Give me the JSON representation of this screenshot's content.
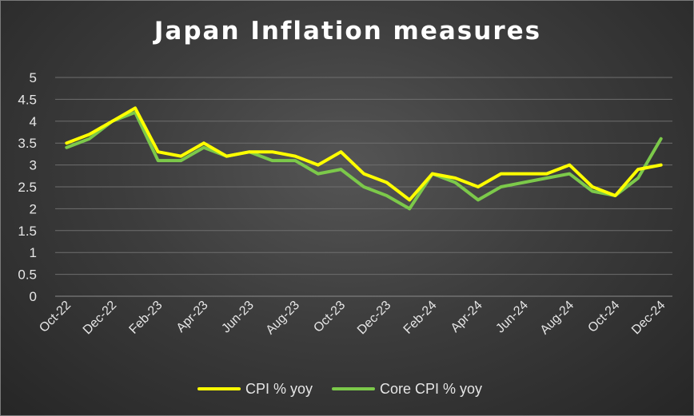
{
  "chart_data": {
    "type": "line",
    "title": "Japan Inflation measures",
    "xlabel": "",
    "ylabel": "",
    "ylim": [
      0,
      5
    ],
    "yticks": [
      "0",
      "0.5",
      "1",
      "1.5",
      "2",
      "2.5",
      "3",
      "3.5",
      "4",
      "4.5",
      "5"
    ],
    "x": [
      "Oct-22",
      "Nov-22",
      "Dec-22",
      "Jan-23",
      "Feb-23",
      "Mar-23",
      "Apr-23",
      "May-23",
      "Jun-23",
      "Jul-23",
      "Aug-23",
      "Sep-23",
      "Oct-23",
      "Nov-23",
      "Dec-23",
      "Jan-24",
      "Feb-24",
      "Mar-24",
      "Apr-24",
      "May-24",
      "Jun-24",
      "Jul-24",
      "Aug-24",
      "Sep-24",
      "Oct-24",
      "Nov-24",
      "Dec-24"
    ],
    "xtick_labels": [
      "Oct-22",
      "Dec-22",
      "Feb-23",
      "Apr-23",
      "Jun-23",
      "Aug-23",
      "Oct-23",
      "Dec-23",
      "Feb-24",
      "Apr-24",
      "Jun-24",
      "Aug-24",
      "Oct-24",
      "Dec-24"
    ],
    "grid": true,
    "legend_position": "bottom",
    "series": [
      {
        "name": "CPI % yoy",
        "color": "#ffff00",
        "values": [
          3.5,
          3.7,
          4.0,
          4.3,
          3.3,
          3.2,
          3.5,
          3.2,
          3.3,
          3.3,
          3.2,
          3.0,
          3.3,
          2.8,
          2.6,
          2.2,
          2.8,
          2.7,
          2.5,
          2.8,
          2.8,
          2.8,
          3.0,
          2.5,
          2.3,
          2.9,
          3.0
        ]
      },
      {
        "name": "Core CPI % yoy",
        "color": "#7cc94a",
        "values": [
          3.4,
          3.6,
          4.0,
          4.2,
          3.1,
          3.1,
          3.4,
          3.2,
          3.3,
          3.1,
          3.1,
          2.8,
          2.9,
          2.5,
          2.3,
          2.0,
          2.8,
          2.6,
          2.2,
          2.5,
          2.6,
          2.7,
          2.8,
          2.4,
          2.3,
          2.7,
          3.6
        ]
      }
    ]
  }
}
